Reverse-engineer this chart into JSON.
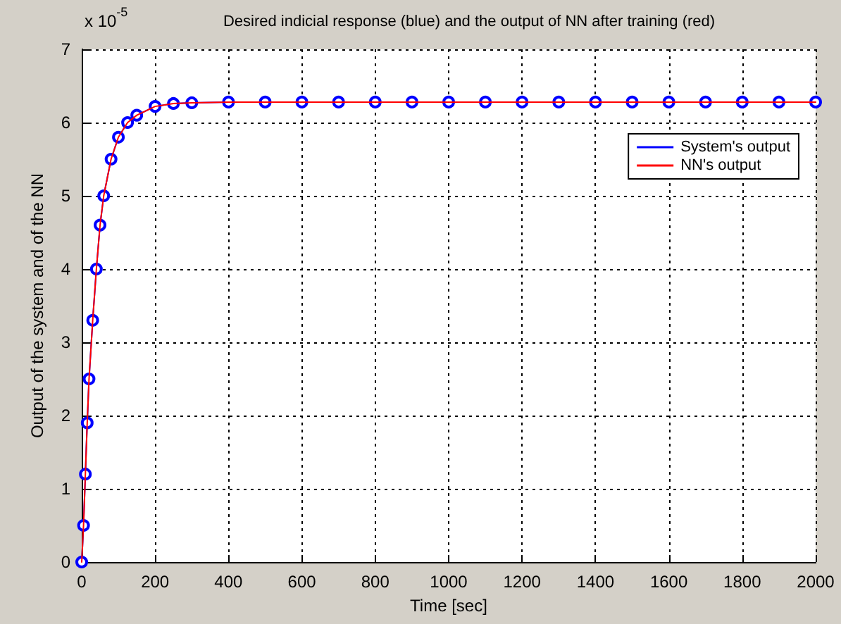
{
  "chart_data": {
    "type": "line",
    "title": "Desired indicial response (blue) and the output of NN after training (red)",
    "xlabel": "Time [sec]",
    "ylabel": "Output of the system and of the NN",
    "annotations": [
      "x 10$^{-5}$"
    ],
    "x": [
      0,
      5,
      10,
      15,
      20,
      30,
      40,
      50,
      60,
      80,
      100,
      125,
      150,
      200,
      250,
      300,
      400,
      500,
      600,
      700,
      800,
      900,
      1000,
      1100,
      1200,
      1300,
      1400,
      1500,
      1600,
      1700,
      1800,
      1900,
      2000
    ],
    "series": [
      {
        "name": "System's output",
        "color": "#0000ff",
        "marker": "circle",
        "values": [
          0,
          0.5,
          1.2,
          1.9,
          2.5,
          3.3,
          4.0,
          4.6,
          5.0,
          5.5,
          5.8,
          6.0,
          6.1,
          6.22,
          6.26,
          6.27,
          6.28,
          6.28,
          6.28,
          6.28,
          6.28,
          6.28,
          6.28,
          6.28,
          6.28,
          6.28,
          6.28,
          6.28,
          6.28,
          6.28,
          6.28,
          6.28,
          6.28
        ]
      },
      {
        "name": "NN's output",
        "color": "#ff0000",
        "marker": "none",
        "values": [
          0,
          0.5,
          1.2,
          1.9,
          2.5,
          3.3,
          4.0,
          4.6,
          5.0,
          5.5,
          5.8,
          6.0,
          6.1,
          6.22,
          6.26,
          6.27,
          6.28,
          6.28,
          6.28,
          6.28,
          6.28,
          6.28,
          6.28,
          6.28,
          6.28,
          6.28,
          6.28,
          6.28,
          6.28,
          6.28,
          6.28,
          6.28,
          6.28
        ]
      }
    ],
    "xlim": [
      0,
      2000
    ],
    "xticks": [
      0,
      200,
      400,
      600,
      800,
      1000,
      1200,
      1400,
      1600,
      1800,
      2000
    ],
    "ylim": [
      0,
      7
    ],
    "yticks": [
      0,
      1,
      2,
      3,
      4,
      5,
      6,
      7
    ],
    "grid": true,
    "legend": "top right",
    "line_style": "solid"
  }
}
